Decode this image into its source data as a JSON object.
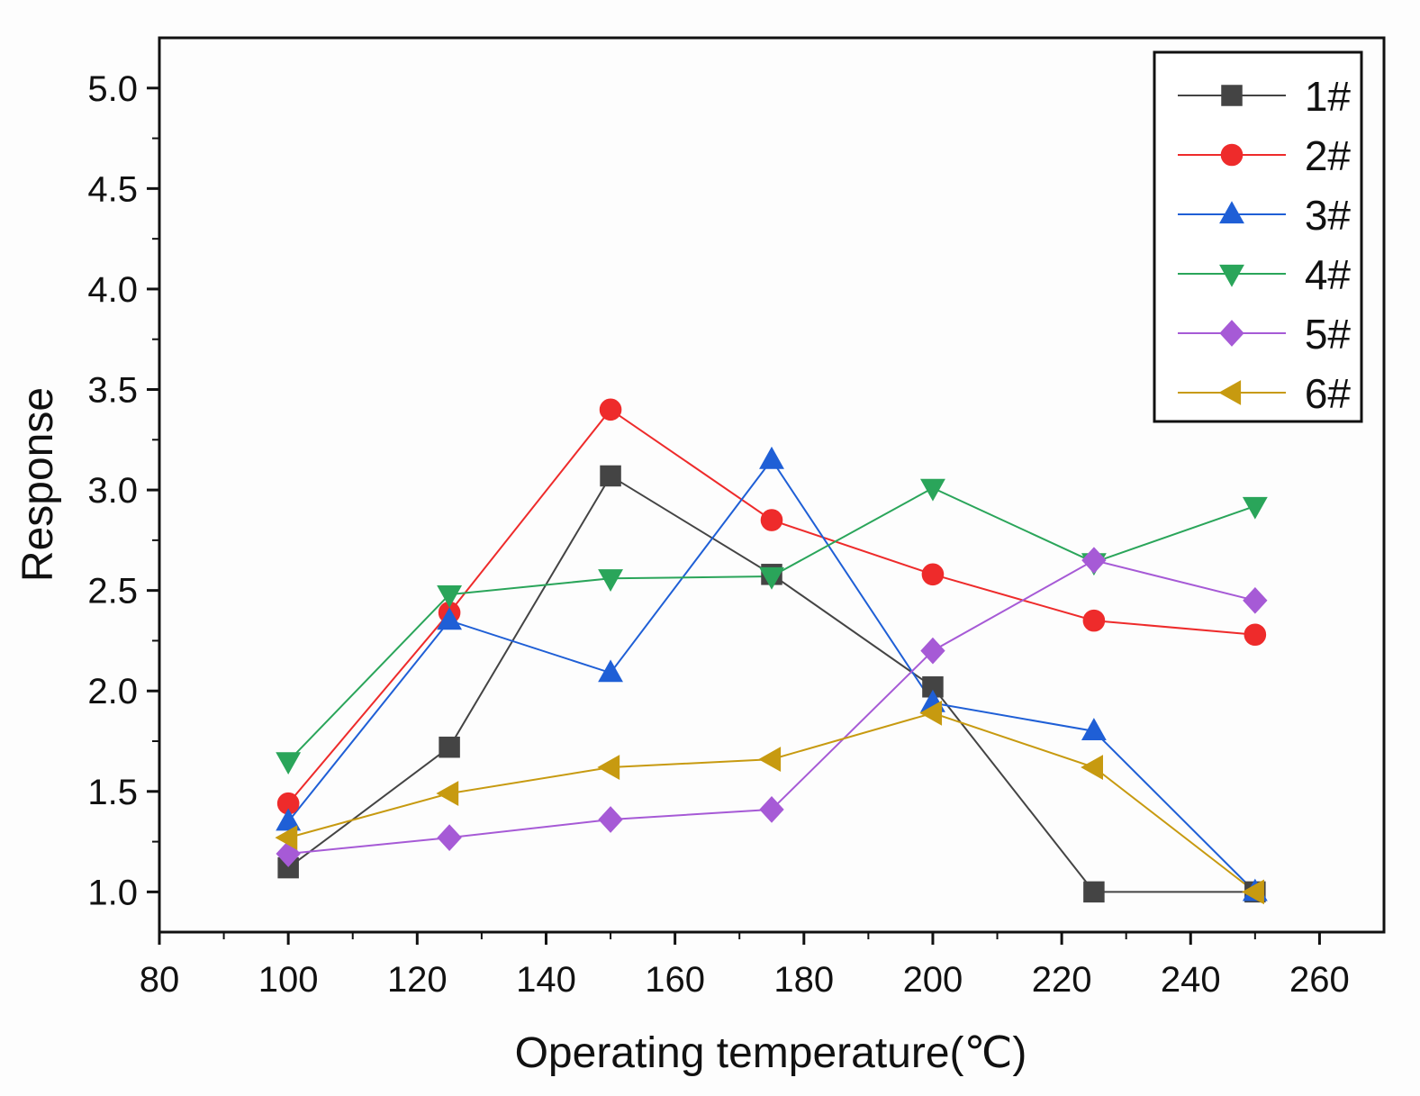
{
  "chart_data": {
    "type": "line",
    "title": "",
    "xlabel": "Operating temperature(℃)",
    "ylabel": "Response",
    "xlim": [
      80,
      270
    ],
    "ylim": [
      0.8,
      5.25
    ],
    "xticks": [
      80,
      100,
      120,
      140,
      160,
      180,
      200,
      220,
      240,
      260
    ],
    "xtick_labels": [
      "80",
      "100",
      "120",
      "140",
      "160",
      "180",
      "200",
      "220",
      "240",
      "260"
    ],
    "yticks": [
      1.0,
      1.5,
      2.0,
      2.5,
      3.0,
      3.5,
      4.0,
      4.5,
      5.0
    ],
    "ytick_labels": [
      "1.0",
      "1.5",
      "2.0",
      "2.5",
      "3.0",
      "3.5",
      "4.0",
      "4.5",
      "5.0"
    ],
    "x": [
      100,
      125,
      150,
      175,
      200,
      225,
      250
    ],
    "legend_position": "top-right",
    "grid": false,
    "series": [
      {
        "name": "1#",
        "color": "#444444",
        "marker": "square",
        "values": [
          1.12,
          1.72,
          3.07,
          2.58,
          2.02,
          1.0,
          1.0
        ]
      },
      {
        "name": "2#",
        "color": "#ee2b2b",
        "marker": "circle",
        "values": [
          1.44,
          2.39,
          3.4,
          2.85,
          2.58,
          2.35,
          2.28
        ]
      },
      {
        "name": "3#",
        "color": "#1f5fd6",
        "marker": "triangle-up",
        "values": [
          1.35,
          2.35,
          2.09,
          3.15,
          1.94,
          1.8,
          1.0
        ]
      },
      {
        "name": "4#",
        "color": "#2aa55a",
        "marker": "triangle-down",
        "values": [
          1.65,
          2.48,
          2.56,
          2.57,
          3.01,
          2.64,
          2.92
        ]
      },
      {
        "name": "5#",
        "color": "#a65ad6",
        "marker": "diamond",
        "values": [
          1.19,
          1.27,
          1.36,
          1.41,
          2.2,
          2.65,
          2.45
        ]
      },
      {
        "name": "6#",
        "color": "#c79a10",
        "marker": "triangle-left",
        "values": [
          1.27,
          1.49,
          1.62,
          1.66,
          1.89,
          1.62,
          1.0
        ]
      }
    ]
  }
}
